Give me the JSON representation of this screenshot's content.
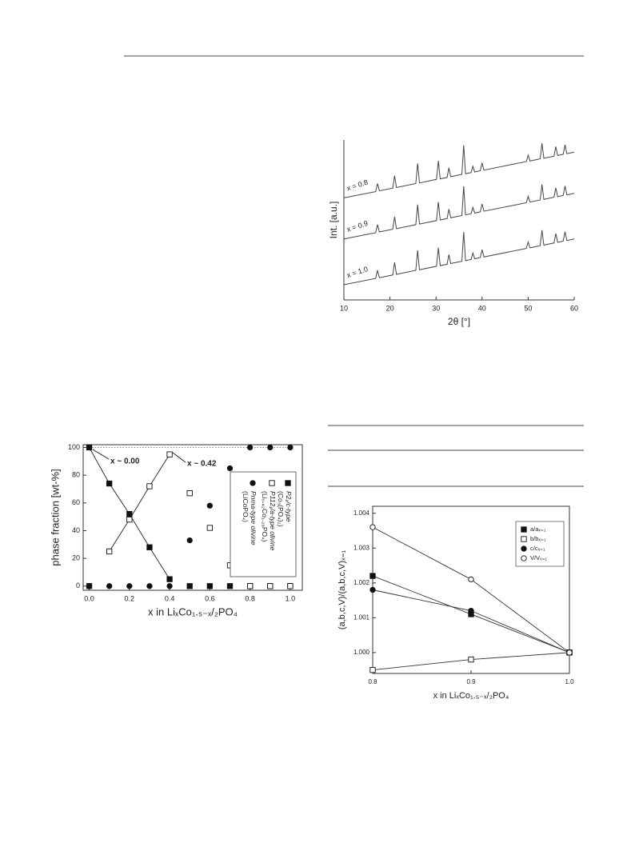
{
  "chart_data": [
    {
      "type": "line",
      "xlabel": "2θ [°]",
      "ylabel": "Int. [a.u.]",
      "x": [
        10,
        16.9,
        17.3,
        17.7,
        20.6,
        21,
        21.4,
        25.6,
        26,
        26.4,
        30.1,
        30.5,
        30.9,
        32.4,
        32.8,
        33.2,
        35.6,
        36,
        36.4,
        37.6,
        38,
        38.4,
        39.6,
        40,
        40.4,
        49.6,
        50,
        50.4,
        52.6,
        53,
        53.4,
        55.6,
        56,
        56.4,
        57.6,
        58,
        58.4,
        60
      ],
      "xlim": [
        10,
        60
      ],
      "xticks": [
        10,
        20,
        30,
        40,
        50,
        60
      ],
      "ylim": [
        0,
        10.5
      ],
      "color": "#444444",
      "series": [
        {
          "name": "x = 0.8",
          "values": [
            6.7,
            7.11,
            7.64,
            7.16,
            7.34,
            8.16,
            7.38,
            7.64,
            8.96,
            7.68,
            7.91,
            9.13,
            7.95,
            8.04,
            8.67,
            8.09,
            8.24,
            10.16,
            8.28,
            8.36,
            8.78,
            8.4,
            8.48,
            9.0,
            8.52,
            9.08,
            9.5,
            9.12,
            9.26,
            10.28,
            9.3,
            9.44,
            10.06,
            9.48,
            9.56,
            10.18,
            9.6,
            9.7
          ]
        },
        {
          "name": "x = 0.9",
          "values": [
            4.0,
            4.41,
            4.94,
            4.46,
            4.64,
            5.46,
            4.68,
            4.94,
            6.26,
            4.98,
            5.21,
            6.43,
            5.25,
            5.34,
            5.97,
            5.39,
            5.54,
            7.46,
            5.58,
            5.66,
            6.08,
            5.7,
            5.78,
            6.3,
            5.82,
            6.38,
            6.8,
            6.42,
            6.56,
            7.58,
            6.6,
            6.74,
            7.36,
            6.78,
            6.86,
            7.48,
            6.9,
            7.0
          ]
        },
        {
          "name": "x = 1.0",
          "values": [
            1.0,
            1.41,
            1.94,
            1.46,
            1.64,
            2.46,
            1.68,
            1.94,
            3.26,
            1.98,
            2.21,
            3.43,
            2.25,
            2.34,
            2.97,
            2.39,
            2.54,
            4.46,
            2.58,
            2.66,
            3.08,
            2.7,
            2.78,
            3.3,
            2.82,
            3.38,
            3.8,
            3.42,
            3.56,
            4.58,
            3.6,
            3.74,
            4.36,
            3.78,
            3.86,
            4.48,
            3.9,
            4.0
          ]
        }
      ]
    },
    {
      "type": "scatter",
      "xlabel": "x in LiₓCo₁.₅₋ₓ/₂PO₄",
      "ylabel": "phase fraction [wt-%]",
      "x": [
        0,
        0.1,
        0.2,
        0.3,
        0.4,
        0.5,
        0.6,
        0.7,
        0.8,
        0.9,
        1.0
      ],
      "xlim": [
        -0.03,
        1.06
      ],
      "xticks": [
        {
          "value": 0,
          "label": "0.0"
        },
        0.2,
        0.4,
        0.6,
        0.8,
        {
          "value": 1,
          "label": "1.0"
        }
      ],
      "ylim": [
        -3,
        102
      ],
      "yticks": [
        0,
        20,
        40,
        60,
        80,
        100
      ],
      "annotations": [
        "x ~ 0.00",
        "x ~ 0.42"
      ],
      "series": [
        {
          "name": "P2₁/c-type",
          "formula": "(Co₃(PO₄)₂)",
          "marker": "square-filled",
          "color": "#111111",
          "values": [
            100,
            74,
            52,
            28,
            5,
            0,
            0,
            0,
            0,
            0,
            0
          ]
        },
        {
          "name": "P112₁/a-type olivine",
          "formula": "(Li₀.₄₂Co₁.₂₉PO₄)",
          "marker": "square-open",
          "color": "#111111",
          "values": [
            0,
            25,
            48,
            72,
            95,
            67,
            42,
            15,
            0,
            0,
            0
          ]
        },
        {
          "name": "Pnma-type olivine",
          "formula": "(LiCoPO₄)",
          "marker": "circle-filled",
          "color": "#111111",
          "values": [
            0,
            0,
            0,
            0,
            0,
            33,
            58,
            85,
            100,
            100,
            100
          ]
        }
      ]
    },
    {
      "type": "scatter",
      "xlabel": "x in LiₓCo₁.₅₋ₓ/₂PO₄",
      "ylabel": "(a,b,c,V)/(a,b,c,V)ₓ₌₁",
      "x": [
        0.8,
        0.9,
        1.0
      ],
      "xlim": [
        0.8,
        1.0
      ],
      "xticks": [
        0.8,
        0.9,
        {
          "value": 1,
          "label": "1.0"
        }
      ],
      "ylim": [
        0.9994,
        1.0042
      ],
      "yticks": [
        {
          "value": 1,
          "label": "1.000"
        },
        {
          "value": 1.001,
          "label": "1.001"
        },
        {
          "value": 1.002,
          "label": "1.002"
        },
        {
          "value": 1.003,
          "label": "1.003"
        },
        {
          "value": 1.004,
          "label": "1.004"
        }
      ],
      "lines": true,
      "series": [
        {
          "name": "a/aₓ₌₁",
          "marker": "square-filled",
          "color": "#111111",
          "values": [
            1.0022,
            1.0011,
            1.0
          ]
        },
        {
          "name": "b/bₓ₌₁",
          "marker": "square-open",
          "color": "#111111",
          "values": [
            0.9995,
            0.9998,
            1.0
          ]
        },
        {
          "name": "c/cₓ₌₁",
          "marker": "circle-filled",
          "color": "#111111",
          "values": [
            1.0018,
            1.0012,
            1.0
          ]
        },
        {
          "name": "V/Vₓ₌₁",
          "marker": "circle-open",
          "color": "#111111",
          "values": [
            1.0036,
            1.0021,
            1.0
          ]
        }
      ]
    }
  ]
}
